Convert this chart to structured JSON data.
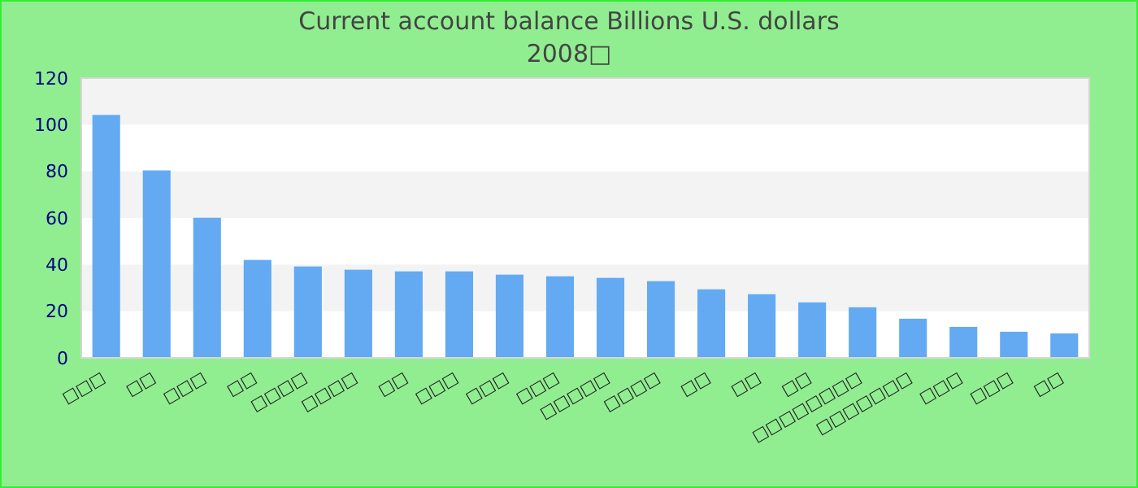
{
  "chart_data": {
    "type": "bar",
    "title": "Current account balance Billions U.S. dollars",
    "subtitle": "2008□",
    "categories": [
      "□□□",
      "□□",
      "□□□",
      "□□",
      "□□□□",
      "□□□□",
      "□□",
      "□□□",
      "□□□",
      "□□□",
      "□□□□□",
      "□□□□",
      "□□",
      "□□",
      "□□",
      "□□□□□□□□",
      "□□□□□□□",
      "□□□",
      "□□□",
      "□□"
    ],
    "values": [
      104.2,
      80.4,
      60.1,
      42.0,
      39.2,
      37.8,
      37.1,
      37.1,
      35.7,
      35.0,
      34.3,
      32.9,
      29.4,
      27.3,
      23.8,
      21.7,
      16.8,
      13.3,
      11.2,
      10.5
    ],
    "color": "#63aaf3",
    "ylim": [
      0,
      120
    ],
    "yticks": [
      0,
      20,
      40,
      60,
      80,
      100,
      120
    ]
  }
}
